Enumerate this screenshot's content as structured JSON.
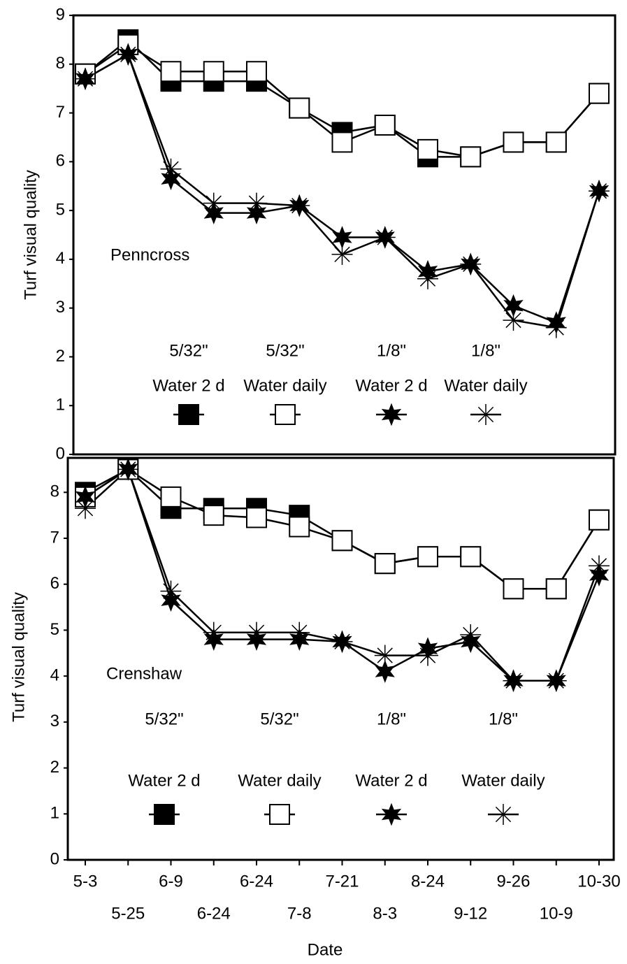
{
  "chart_data": [
    {
      "type": "line",
      "annotation": "Penncross",
      "y_label": "Turf visual quality",
      "ylim": [
        0,
        9
      ],
      "yticks": [
        0,
        1,
        2,
        3,
        4,
        5,
        6,
        7,
        8,
        9
      ],
      "series": [
        {
          "name": [
            "5/32\"",
            "Water 2 d"
          ],
          "marker": "filled-square",
          "color": "#000000",
          "values": [
            7.8,
            8.5,
            7.65,
            7.65,
            7.65,
            7.1,
            6.6,
            6.75,
            6.1,
            6.1,
            6.4,
            6.4,
            7.4
          ]
        },
        {
          "name": [
            "5/32\"",
            "Water daily"
          ],
          "marker": "open-square",
          "color": "#000000",
          "values": [
            7.8,
            8.4,
            7.85,
            7.85,
            7.85,
            7.1,
            6.4,
            6.75,
            6.25,
            6.1,
            6.4,
            6.4,
            7.4
          ]
        },
        {
          "name": [
            "1/8\"",
            "Water 2 d"
          ],
          "marker": "filled-star",
          "color": "#000000",
          "values": [
            7.7,
            8.2,
            5.65,
            4.95,
            4.95,
            5.1,
            4.45,
            4.45,
            3.75,
            3.9,
            3.05,
            2.7,
            5.4
          ]
        },
        {
          "name": [
            "1/8\"",
            "Water daily"
          ],
          "marker": "asterisk",
          "color": "#000000",
          "values": [
            7.7,
            8.2,
            5.85,
            5.15,
            5.15,
            5.1,
            4.1,
            4.45,
            3.6,
            3.9,
            2.75,
            2.6,
            5.4
          ]
        }
      ]
    },
    {
      "type": "line",
      "annotation": "Crenshaw",
      "y_label": "Turf visual quality",
      "x_label": "Date",
      "categories": [
        "5-3",
        "5-25",
        "6-9",
        "6-24",
        "6-24",
        "7-8",
        "7-21",
        "8-3",
        "8-24",
        "9-12",
        "9-26",
        "10-9",
        "10-30"
      ],
      "ylim": [
        0,
        8.75
      ],
      "yticks": [
        0,
        1,
        2,
        3,
        4,
        5,
        6,
        7,
        8
      ],
      "series": [
        {
          "name": [
            "5/32\"",
            "Water 2 d"
          ],
          "marker": "filled-square",
          "color": "#000000",
          "values": [
            8.0,
            8.5,
            7.65,
            7.65,
            7.65,
            7.5,
            6.95,
            6.45,
            6.6,
            6.6,
            5.9,
            5.9,
            7.4
          ]
        },
        {
          "name": [
            "5/32\"",
            "Water daily"
          ],
          "marker": "open-square",
          "color": "#000000",
          "values": [
            7.9,
            8.5,
            7.9,
            7.5,
            7.45,
            7.25,
            6.95,
            6.45,
            6.6,
            6.6,
            5.9,
            5.9,
            7.4
          ]
        },
        {
          "name": [
            "1/8\"",
            "Water 2 d"
          ],
          "marker": "filled-star",
          "color": "#000000",
          "values": [
            7.9,
            8.5,
            5.65,
            4.8,
            4.8,
            4.8,
            4.75,
            4.1,
            4.6,
            4.75,
            3.9,
            3.9,
            6.2
          ]
        },
        {
          "name": [
            "1/8\"",
            "Water daily"
          ],
          "marker": "asterisk",
          "color": "#000000",
          "values": [
            7.65,
            8.5,
            5.85,
            4.95,
            4.95,
            4.95,
            4.75,
            4.45,
            4.45,
            4.9,
            3.9,
            3.9,
            6.4
          ]
        }
      ]
    }
  ]
}
